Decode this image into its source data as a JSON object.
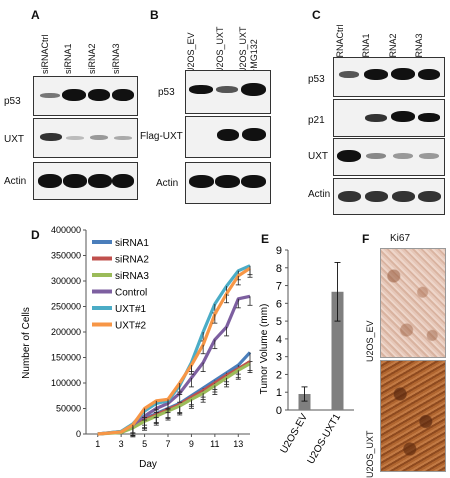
{
  "panels": {
    "A": {
      "label": "A",
      "lanes": [
        "siRNACtrl",
        "siRNA1",
        "siRNA2",
        "siRNA3"
      ],
      "rows": [
        "p53",
        "UXT",
        "Actin"
      ]
    },
    "B": {
      "label": "B",
      "lanes": [
        "U2OS_EV",
        "U2OS_UXT",
        "U2OS_UXT\n+MG132"
      ],
      "lane3_line1": "U2OS_UXT",
      "lane3_line2": "+MG132",
      "rows": [
        "p53",
        "Flag-UXT",
        "Actin"
      ]
    },
    "C": {
      "label": "C",
      "lanes": [
        "siRNACtrl",
        "siRNA1",
        "siRNA2",
        "siRNA3"
      ],
      "rows": [
        "p53",
        "p21",
        "UXT",
        "Actin"
      ]
    },
    "D": {
      "label": "D"
    },
    "E": {
      "label": "E"
    },
    "F": {
      "label": "F",
      "title": "Ki67",
      "images": [
        "U2OS_EV",
        "U2OS_UXT"
      ]
    }
  },
  "chart_data": [
    {
      "type": "line",
      "panel": "D",
      "xlabel": "Day",
      "ylabel": "Number of Cells",
      "xlim": [
        0,
        14
      ],
      "ylim": [
        0,
        400000
      ],
      "xticks": [
        1,
        3,
        5,
        7,
        9,
        11,
        13
      ],
      "yticks": [
        0,
        50000,
        100000,
        150000,
        200000,
        250000,
        300000,
        350000,
        400000
      ],
      "legend_position": "top-left",
      "series": [
        {
          "name": "siRNA1",
          "color": "#4a7ebb",
          "x": [
            1,
            3,
            4,
            5,
            6,
            7,
            8,
            9,
            10,
            11,
            12,
            13,
            14
          ],
          "y": [
            0,
            4000,
            15000,
            30000,
            40000,
            50000,
            60000,
            75000,
            90000,
            105000,
            120000,
            135000,
            160000
          ]
        },
        {
          "name": "siRNA2",
          "color": "#c0504d",
          "x": [
            1,
            3,
            4,
            5,
            6,
            7,
            8,
            9,
            10,
            11,
            12,
            13,
            14
          ],
          "y": [
            0,
            4000,
            14000,
            28000,
            38000,
            48000,
            58000,
            72000,
            85000,
            100000,
            115000,
            128000,
            142000
          ]
        },
        {
          "name": "siRNA3",
          "color": "#9bbb59",
          "x": [
            1,
            3,
            4,
            5,
            6,
            7,
            8,
            9,
            10,
            11,
            12,
            13,
            14
          ],
          "y": [
            0,
            3000,
            12000,
            25000,
            35000,
            45000,
            55000,
            68000,
            80000,
            95000,
            110000,
            125000,
            138000
          ]
        },
        {
          "name": "Control",
          "color": "#7d5fa0",
          "x": [
            1,
            3,
            4,
            5,
            6,
            7,
            8,
            9,
            10,
            11,
            12,
            13,
            14
          ],
          "y": [
            0,
            5000,
            18000,
            35000,
            50000,
            60000,
            80000,
            110000,
            140000,
            185000,
            210000,
            265000,
            270000
          ]
        },
        {
          "name": "UXT#1",
          "color": "#4bacc6",
          "x": [
            1,
            3,
            4,
            5,
            6,
            7,
            8,
            9,
            10,
            11,
            12,
            13,
            14
          ],
          "y": [
            0,
            5000,
            20000,
            45000,
            60000,
            65000,
            95000,
            140000,
            200000,
            255000,
            290000,
            320000,
            330000
          ]
        },
        {
          "name": "UXT#2",
          "color": "#f79646",
          "x": [
            1,
            3,
            4,
            5,
            6,
            7,
            8,
            9,
            10,
            11,
            12,
            13,
            14
          ],
          "y": [
            0,
            4000,
            18000,
            50000,
            65000,
            68000,
            100000,
            135000,
            175000,
            235000,
            275000,
            310000,
            325000
          ]
        }
      ]
    },
    {
      "type": "bar",
      "panel": "E",
      "ylabel": "Tumor Volume (mm)",
      "ylim": [
        0,
        9
      ],
      "yticks": [
        0,
        1,
        2,
        3,
        4,
        5,
        6,
        7,
        8,
        9
      ],
      "categories": [
        "U2OS-EV",
        "U2OS-UXT1"
      ],
      "values": [
        0.9,
        6.65
      ],
      "errors": [
        0.4,
        1.65
      ],
      "color": "#7f7f7f"
    }
  ]
}
